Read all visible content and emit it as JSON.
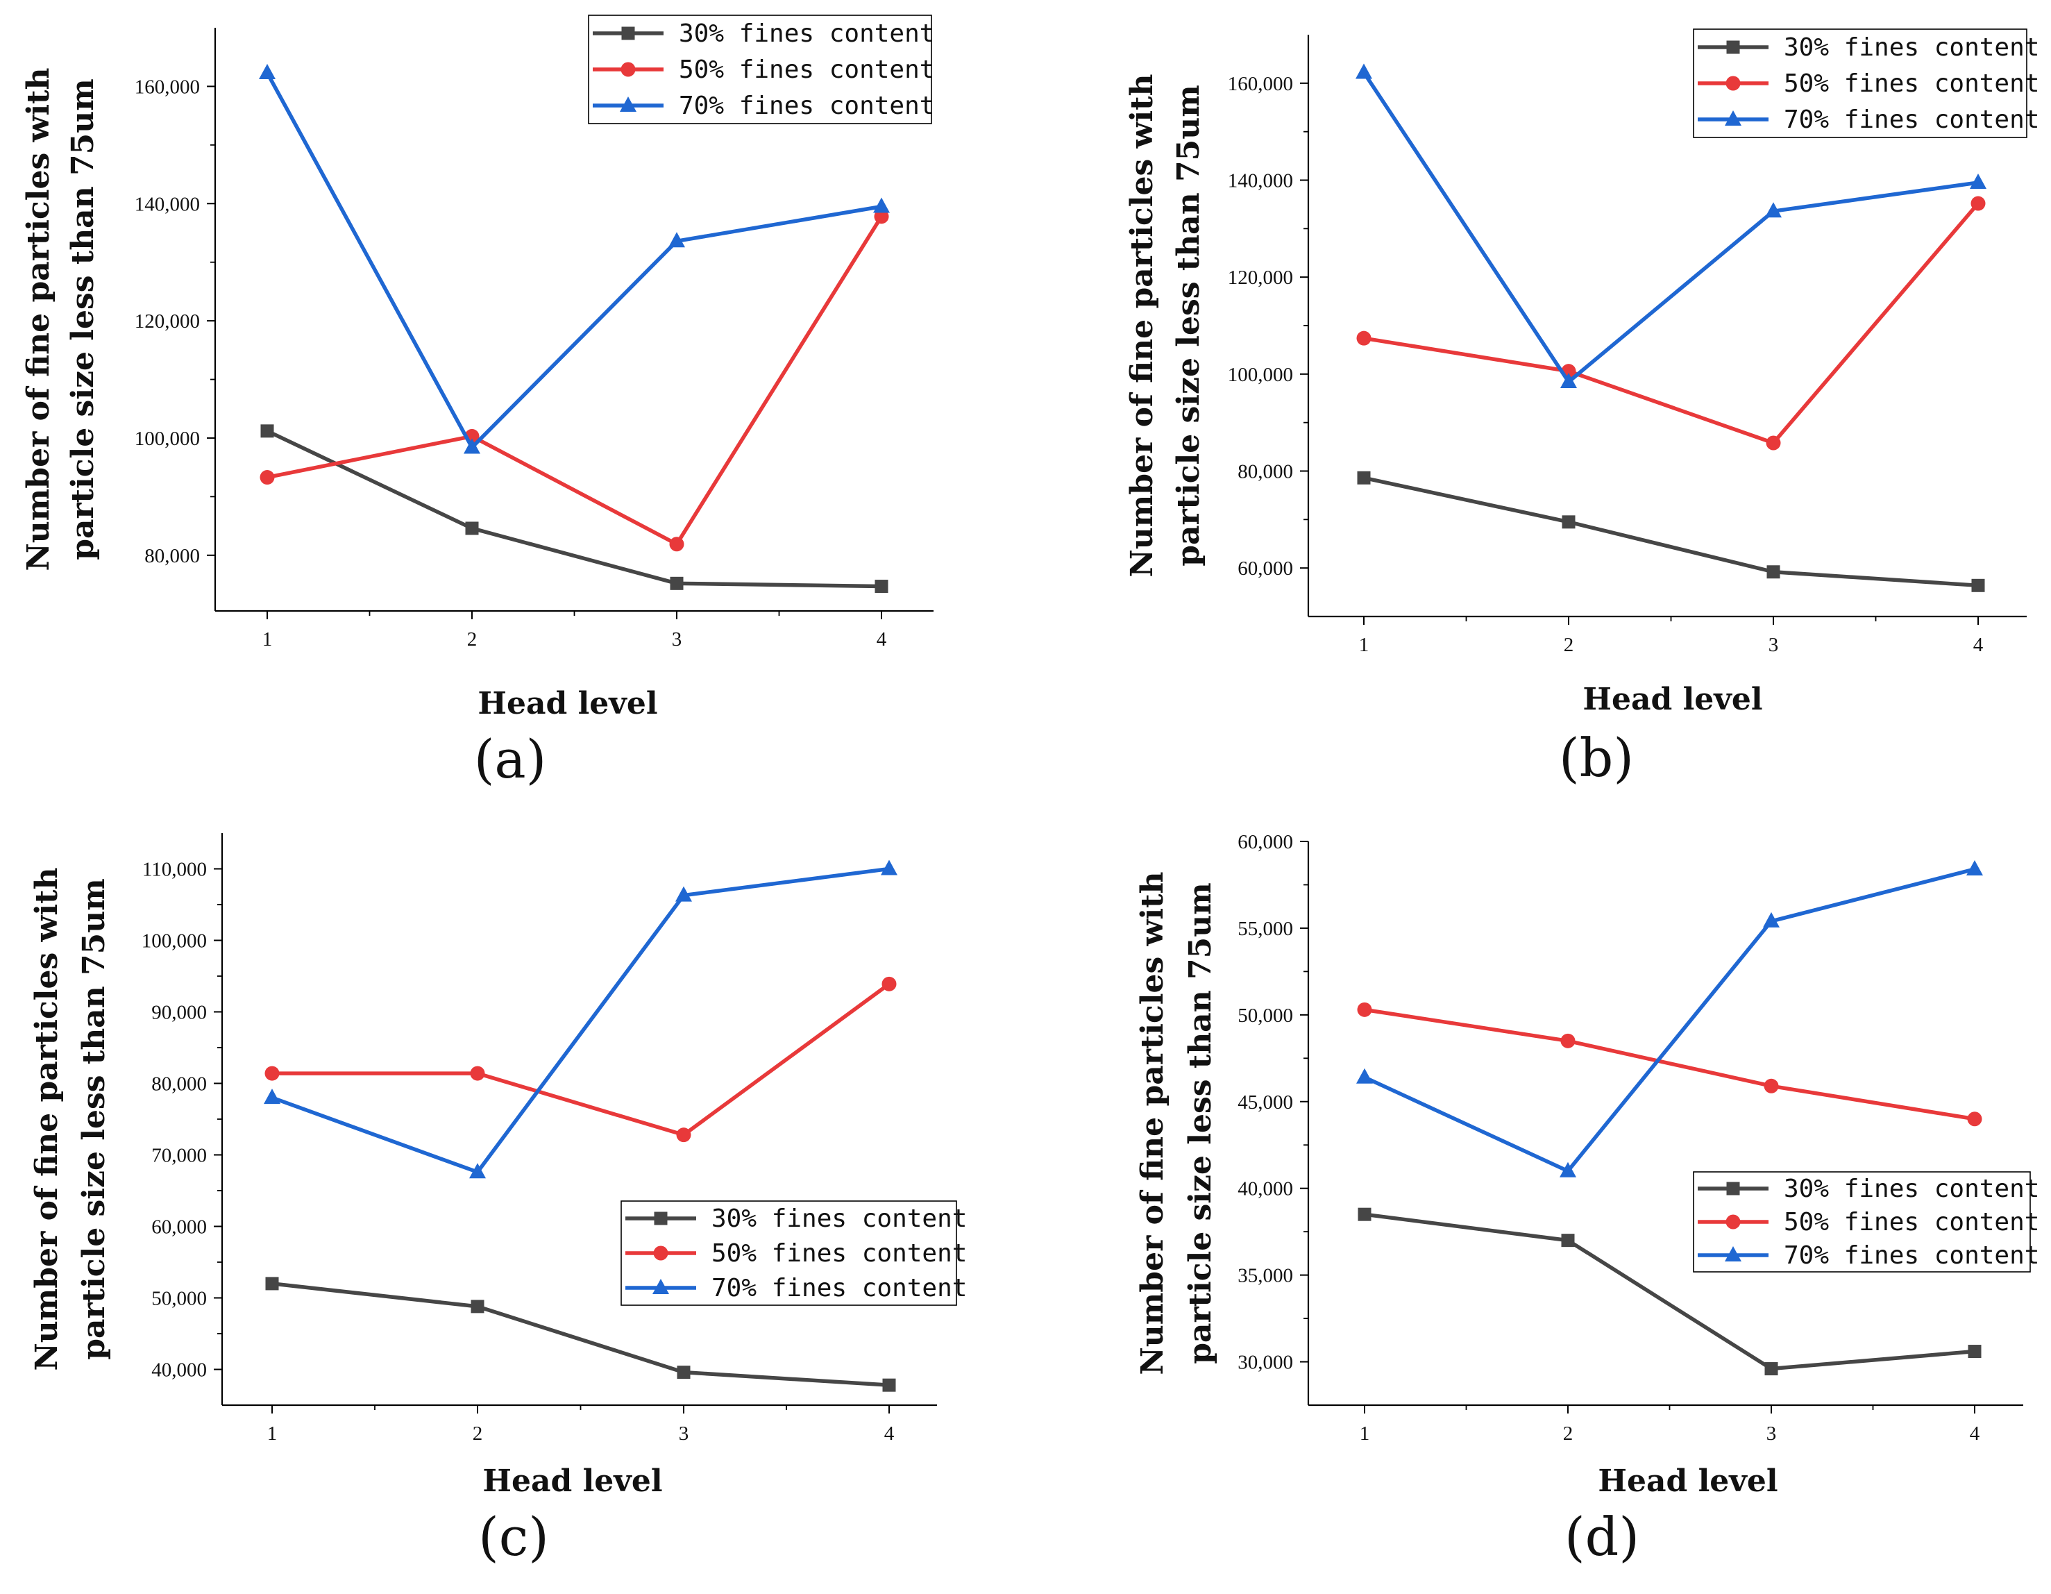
{
  "figure": {
    "shared": {
      "categories": [
        "1",
        "2",
        "3",
        "4"
      ],
      "xlabel": "Head level",
      "ylabel_line1": "Number of fine particles with",
      "ylabel_line2": "particle size less than 75um",
      "series_names": [
        "30% fines content",
        "50% fines content",
        "70% fines content"
      ],
      "colors": {
        "s30": "#464646",
        "s50": "#e8393a",
        "s70": "#1f67d2"
      },
      "markers": [
        "square",
        "circle",
        "triangle"
      ]
    }
  },
  "chart_data": [
    {
      "type": "line",
      "panel_label": "(a)",
      "title": "",
      "xlabel": "Head level",
      "ylabel": "Number of fine particles with particle size less than 75um",
      "categories": [
        "1",
        "2",
        "3",
        "4"
      ],
      "ylim": [
        70500,
        170000
      ],
      "yticks": [
        80000,
        100000,
        120000,
        140000,
        160000
      ],
      "ytick_labels": [
        "80,000",
        "100,000",
        "120,000",
        "140,000",
        "160,000"
      ],
      "legend_position": "top-right",
      "series": [
        {
          "name": "30% fines content",
          "values": [
            101200,
            84600,
            75200,
            74700
          ]
        },
        {
          "name": "50% fines content",
          "values": [
            93300,
            100300,
            81900,
            137800
          ]
        },
        {
          "name": "70% fines content",
          "values": [
            162300,
            98400,
            133600,
            139500
          ]
        }
      ]
    },
    {
      "type": "line",
      "panel_label": "(b)",
      "title": "",
      "xlabel": "Head level",
      "ylabel": "Number of fine particles with particle size less than 75um",
      "categories": [
        "1",
        "2",
        "3",
        "4"
      ],
      "ylim": [
        50000,
        170000
      ],
      "yticks": [
        60000,
        80000,
        100000,
        120000,
        140000,
        160000
      ],
      "ytick_labels": [
        "60,000",
        "80,000",
        "100,000",
        "120,000",
        "140,000",
        "160,000"
      ],
      "legend_position": "top-right",
      "series": [
        {
          "name": "30% fines content",
          "values": [
            78600,
            69500,
            59200,
            56400
          ]
        },
        {
          "name": "50% fines content",
          "values": [
            107400,
            100600,
            85800,
            135200
          ]
        },
        {
          "name": "70% fines content",
          "values": [
            162200,
            98400,
            133600,
            139500
          ]
        }
      ]
    },
    {
      "type": "line",
      "panel_label": "(c)",
      "title": "",
      "xlabel": "Head level",
      "ylabel": "Number of fine particles with particle size less than 75um",
      "categories": [
        "1",
        "2",
        "3",
        "4"
      ],
      "ylim": [
        35000,
        115000
      ],
      "yticks": [
        40000,
        50000,
        60000,
        70000,
        80000,
        90000,
        100000,
        110000
      ],
      "ytick_labels": [
        "40,000",
        "50,000",
        "60,000",
        "70,000",
        "80,000",
        "90,000",
        "100,000",
        "110,000"
      ],
      "legend_position": "lower-right",
      "series": [
        {
          "name": "30% fines content",
          "values": [
            52000,
            48800,
            39600,
            37800
          ]
        },
        {
          "name": "50% fines content",
          "values": [
            81400,
            81400,
            72800,
            93900
          ]
        },
        {
          "name": "70% fines content",
          "values": [
            78000,
            67600,
            106300,
            110000
          ]
        }
      ]
    },
    {
      "type": "line",
      "panel_label": "(d)",
      "title": "",
      "xlabel": "Head level",
      "ylabel": "Number of fine particles with particle size less than 75um",
      "categories": [
        "1",
        "2",
        "3",
        "4"
      ],
      "ylim": [
        27500,
        60000
      ],
      "yticks": [
        30000,
        35000,
        40000,
        45000,
        50000,
        55000,
        60000
      ],
      "ytick_labels": [
        "30,000",
        "35,000",
        "40,000",
        "45,000",
        "50,000",
        "55,000",
        "60,000"
      ],
      "legend_position": "center-right",
      "series": [
        {
          "name": "30% fines content",
          "values": [
            38500,
            37000,
            29600,
            30600
          ]
        },
        {
          "name": "50% fines content",
          "values": [
            50300,
            48500,
            45900,
            44000
          ]
        },
        {
          "name": "70% fines content",
          "values": [
            46400,
            41000,
            55400,
            58400
          ]
        }
      ]
    }
  ]
}
